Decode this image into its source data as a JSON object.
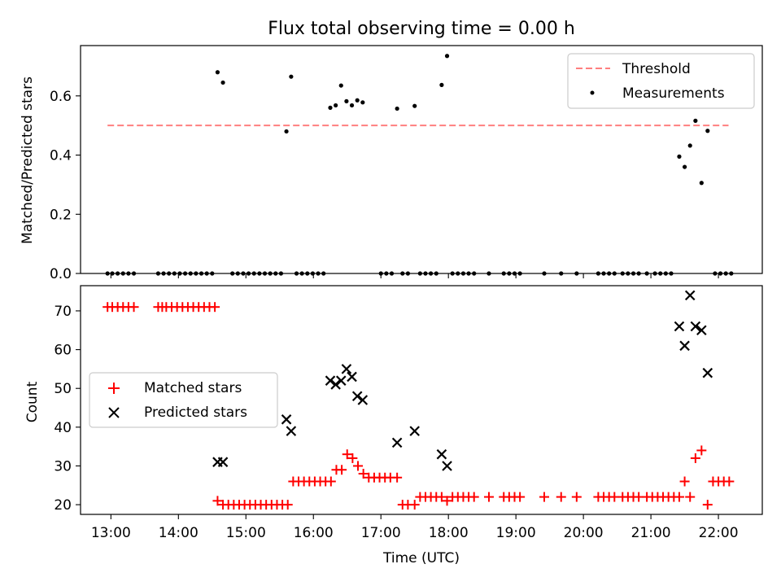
{
  "chart_data": [
    {
      "type": "scatter",
      "title": "Flux total observing time = 0.00 h",
      "xlabel": "",
      "ylabel": "Matched/Predicted stars",
      "xlim": [
        12.55,
        22.65
      ],
      "ylim": [
        0.0,
        0.77
      ],
      "yticks": [
        0.0,
        0.2,
        0.4,
        0.6
      ],
      "ytick_labels": [
        "0.0",
        "0.2",
        "0.4",
        "0.6"
      ],
      "legend_position": "upper right",
      "threshold": {
        "name": "Threshold",
        "value": 0.5,
        "x_range": [
          12.95,
          22.15
        ],
        "color": "#ff7f7f",
        "style": "dashed"
      },
      "series": [
        {
          "name": "Measurements",
          "marker": "dot",
          "color": "#000000",
          "x": [
            12.95,
            13.02,
            13.1,
            13.18,
            13.26,
            13.34,
            13.7,
            13.78,
            13.86,
            13.94,
            14.02,
            14.1,
            14.18,
            14.26,
            14.34,
            14.42,
            14.5,
            14.58,
            14.66,
            14.8,
            14.88,
            14.96,
            15.04,
            15.12,
            15.2,
            15.28,
            15.36,
            15.44,
            15.52,
            15.6,
            15.67,
            15.75,
            15.83,
            15.91,
            15.99,
            16.07,
            16.15,
            16.25,
            16.33,
            16.41,
            16.49,
            16.57,
            16.65,
            16.73,
            17.0,
            17.08,
            17.16,
            17.24,
            17.32,
            17.4,
            17.5,
            17.58,
            17.66,
            17.74,
            17.82,
            17.9,
            17.98,
            18.06,
            18.14,
            18.22,
            18.3,
            18.38,
            18.6,
            18.82,
            18.9,
            18.98,
            19.06,
            19.42,
            19.67,
            19.9,
            20.22,
            20.3,
            20.38,
            20.46,
            20.58,
            20.66,
            20.74,
            20.82,
            20.94,
            21.06,
            21.14,
            21.22,
            21.3,
            21.42,
            21.5,
            21.58,
            21.66,
            21.75,
            21.84,
            21.95,
            22.03,
            22.11,
            22.19
          ],
          "y": [
            0,
            0,
            0,
            0,
            0,
            0,
            0,
            0,
            0,
            0,
            0,
            0,
            0,
            0,
            0,
            0,
            0,
            0.68,
            0.645,
            0,
            0,
            0,
            0,
            0,
            0,
            0,
            0,
            0,
            0,
            0.48,
            0.665,
            0,
            0,
            0,
            0,
            0,
            0,
            0.56,
            0.568,
            0.635,
            0.582,
            0.568,
            0.585,
            0.578,
            0,
            0,
            0,
            0.557,
            0,
            0,
            0.566,
            0,
            0,
            0,
            0,
            0.637,
            0.735,
            0,
            0,
            0,
            0,
            0,
            0,
            0,
            0,
            0,
            0,
            0,
            0,
            0,
            0,
            0,
            0,
            0,
            0,
            0,
            0,
            0,
            0,
            0,
            0,
            0,
            0,
            0.395,
            0.36,
            0.432,
            0.516,
            0.306,
            0.482,
            0,
            0,
            0,
            0
          ]
        }
      ]
    },
    {
      "type": "scatter",
      "title": "",
      "xlabel": "Time (UTC)",
      "ylabel": "Count",
      "xlim": [
        12.55,
        22.65
      ],
      "ylim": [
        17.5,
        76.5
      ],
      "xticks": [
        13,
        14,
        15,
        16,
        17,
        18,
        19,
        20,
        21,
        22
      ],
      "xtick_labels": [
        "13:00",
        "14:00",
        "15:00",
        "16:00",
        "17:00",
        "18:00",
        "19:00",
        "20:00",
        "21:00",
        "22:00"
      ],
      "yticks": [
        20,
        30,
        40,
        50,
        60,
        70
      ],
      "ytick_labels": [
        "20",
        "30",
        "40",
        "50",
        "60",
        "70"
      ],
      "legend_position": "center left",
      "series": [
        {
          "name": "Matched stars",
          "marker": "plus",
          "color": "#ff0000",
          "x": [
            12.95,
            13.02,
            13.1,
            13.18,
            13.26,
            13.34,
            13.7,
            13.76,
            13.82,
            13.9,
            13.98,
            14.06,
            14.14,
            14.22,
            14.3,
            14.38,
            14.46,
            14.54,
            14.58,
            14.66,
            14.74,
            14.82,
            14.9,
            14.98,
            15.06,
            15.14,
            15.22,
            15.3,
            15.38,
            15.46,
            15.54,
            15.62,
            15.7,
            15.78,
            15.86,
            15.94,
            16.02,
            16.1,
            16.18,
            16.26,
            16.34,
            16.42,
            16.5,
            16.58,
            16.66,
            16.74,
            16.82,
            16.9,
            16.98,
            17.06,
            17.14,
            17.24,
            17.32,
            17.4,
            17.5,
            17.58,
            17.66,
            17.74,
            17.82,
            17.9,
            17.98,
            18.06,
            18.14,
            18.22,
            18.3,
            18.38,
            18.6,
            18.82,
            18.9,
            18.98,
            19.06,
            19.42,
            19.67,
            19.9,
            20.22,
            20.3,
            20.38,
            20.46,
            20.58,
            20.66,
            20.74,
            20.82,
            20.94,
            21.02,
            21.1,
            21.18,
            21.26,
            21.34,
            21.42,
            21.5,
            21.58,
            21.66,
            21.75,
            21.84,
            21.92,
            22.0,
            22.08,
            22.16
          ],
          "y": [
            71,
            71,
            71,
            71,
            71,
            71,
            71,
            71,
            71,
            71,
            71,
            71,
            71,
            71,
            71,
            71,
            71,
            71,
            21,
            20,
            20,
            20,
            20,
            20,
            20,
            20,
            20,
            20,
            20,
            20,
            20,
            20,
            26,
            26,
            26,
            26,
            26,
            26,
            26,
            26,
            29,
            29,
            33,
            32,
            30,
            28,
            27,
            27,
            27,
            27,
            27,
            27,
            20,
            20,
            20,
            22,
            22,
            22,
            22,
            22,
            21,
            22,
            22,
            22,
            22,
            22,
            22,
            22,
            22,
            22,
            22,
            22,
            22,
            22,
            22,
            22,
            22,
            22,
            22,
            22,
            22,
            22,
            22,
            22,
            22,
            22,
            22,
            22,
            22,
            26,
            22,
            32,
            34,
            20,
            26,
            26,
            26,
            26
          ]
        },
        {
          "name": "Predicted stars",
          "marker": "x",
          "color": "#000000",
          "x": [
            14.58,
            14.66,
            15.6,
            15.67,
            16.25,
            16.33,
            16.41,
            16.49,
            16.57,
            16.65,
            16.73,
            17.24,
            17.5,
            17.9,
            17.98,
            21.42,
            21.5,
            21.58,
            21.66,
            21.75,
            21.84
          ],
          "y": [
            31,
            31,
            42,
            39,
            52,
            51,
            52,
            55,
            53,
            48,
            47,
            36,
            39,
            33,
            30,
            66,
            61,
            74,
            66,
            65,
            54
          ]
        }
      ]
    }
  ]
}
